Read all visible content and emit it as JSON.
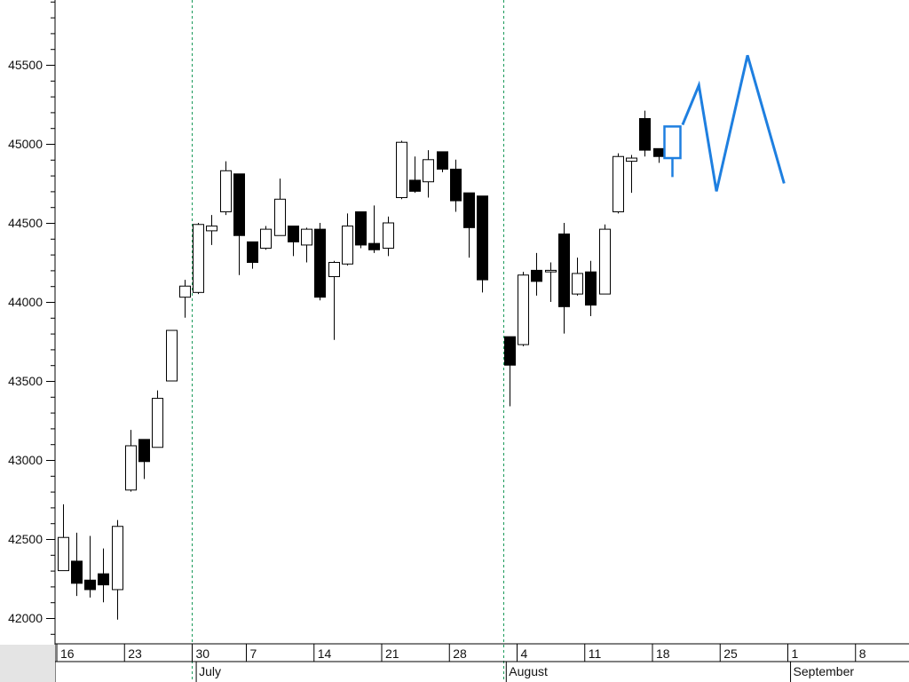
{
  "chart_data": {
    "type": "candlestick",
    "y_ticks": [
      42000,
      42500,
      43000,
      43500,
      44000,
      44500,
      45000,
      45500
    ],
    "y_range": [
      41900,
      45950
    ],
    "x_day_labels": [
      "16",
      "23",
      "30",
      "7",
      "14",
      "21",
      "28",
      "4",
      "11",
      "18",
      "25",
      "1",
      "8"
    ],
    "x_month_labels": [
      "July",
      "August",
      "September"
    ],
    "month_divider_after_slot": [
      10,
      33
    ],
    "candles": [
      {
        "slot": 0,
        "o": 42300,
        "h": 42720,
        "l": 42300,
        "c": 42510
      },
      {
        "slot": 1,
        "o": 42360,
        "h": 42540,
        "l": 42140,
        "c": 42220
      },
      {
        "slot": 2,
        "o": 42240,
        "h": 42520,
        "l": 42130,
        "c": 42180
      },
      {
        "slot": 3,
        "o": 42280,
        "h": 42440,
        "l": 42100,
        "c": 42210
      },
      {
        "slot": 4,
        "o": 42180,
        "h": 42620,
        "l": 41990,
        "c": 42580
      },
      {
        "slot": 5,
        "o": 42810,
        "h": 43190,
        "l": 42800,
        "c": 43090
      },
      {
        "slot": 6,
        "o": 43130,
        "h": 43130,
        "l": 42880,
        "c": 42990
      },
      {
        "slot": 7,
        "o": 43080,
        "h": 43440,
        "l": 43080,
        "c": 43390
      },
      {
        "slot": 8,
        "o": 43500,
        "h": 43820,
        "l": 43500,
        "c": 43820
      },
      {
        "slot": 9,
        "o": 44030,
        "h": 44140,
        "l": 43900,
        "c": 44100
      },
      {
        "slot": 10,
        "o": 44060,
        "h": 44500,
        "l": 44050,
        "c": 44490
      },
      {
        "slot": 11,
        "o": 44450,
        "h": 44550,
        "l": 44360,
        "c": 44480
      },
      {
        "slot": 12,
        "o": 44570,
        "h": 44890,
        "l": 44550,
        "c": 44830
      },
      {
        "slot": 13,
        "o": 44810,
        "h": 44810,
        "l": 44170,
        "c": 44420
      },
      {
        "slot": 14,
        "o": 44380,
        "h": 44380,
        "l": 44210,
        "c": 44250
      },
      {
        "slot": 15,
        "o": 44340,
        "h": 44480,
        "l": 44330,
        "c": 44460
      },
      {
        "slot": 16,
        "o": 44420,
        "h": 44780,
        "l": 44420,
        "c": 44650
      },
      {
        "slot": 17,
        "o": 44480,
        "h": 44480,
        "l": 44290,
        "c": 44380
      },
      {
        "slot": 18,
        "o": 44360,
        "h": 44470,
        "l": 44250,
        "c": 44460
      },
      {
        "slot": 19,
        "o": 44460,
        "h": 44500,
        "l": 44010,
        "c": 44030
      },
      {
        "slot": 20,
        "o": 44160,
        "h": 44260,
        "l": 43760,
        "c": 44250
      },
      {
        "slot": 21,
        "o": 44240,
        "h": 44560,
        "l": 44230,
        "c": 44480
      },
      {
        "slot": 22,
        "o": 44570,
        "h": 44570,
        "l": 44340,
        "c": 44360
      },
      {
        "slot": 23,
        "o": 44370,
        "h": 44610,
        "l": 44310,
        "c": 44330
      },
      {
        "slot": 24,
        "o": 44340,
        "h": 44540,
        "l": 44290,
        "c": 44500
      },
      {
        "slot": 25,
        "o": 44660,
        "h": 45020,
        "l": 44650,
        "c": 45010
      },
      {
        "slot": 26,
        "o": 44770,
        "h": 44920,
        "l": 44690,
        "c": 44700
      },
      {
        "slot": 27,
        "o": 44760,
        "h": 44960,
        "l": 44660,
        "c": 44900
      },
      {
        "slot": 28,
        "o": 44950,
        "h": 44950,
        "l": 44820,
        "c": 44840
      },
      {
        "slot": 29,
        "o": 44840,
        "h": 44900,
        "l": 44570,
        "c": 44640
      },
      {
        "slot": 30,
        "o": 44690,
        "h": 44690,
        "l": 44280,
        "c": 44470
      },
      {
        "slot": 31,
        "o": 44670,
        "h": 44670,
        "l": 44060,
        "c": 44140
      },
      {
        "slot": 33,
        "o": 43780,
        "h": 43780,
        "l": 43340,
        "c": 43600
      },
      {
        "slot": 34,
        "o": 43730,
        "h": 44190,
        "l": 43720,
        "c": 44170
      },
      {
        "slot": 35,
        "o": 44200,
        "h": 44310,
        "l": 44040,
        "c": 44130
      },
      {
        "slot": 36,
        "o": 44190,
        "h": 44250,
        "l": 44000,
        "c": 44200
      },
      {
        "slot": 37,
        "o": 44430,
        "h": 44500,
        "l": 43800,
        "c": 43970
      },
      {
        "slot": 38,
        "o": 44050,
        "h": 44280,
        "l": 44040,
        "c": 44180
      },
      {
        "slot": 39,
        "o": 44190,
        "h": 44260,
        "l": 43910,
        "c": 43980
      },
      {
        "slot": 40,
        "o": 44050,
        "h": 44490,
        "l": 44050,
        "c": 44460
      },
      {
        "slot": 41,
        "o": 44570,
        "h": 44940,
        "l": 44560,
        "c": 44920
      },
      {
        "slot": 42,
        "o": 44890,
        "h": 44930,
        "l": 44690,
        "c": 44910
      },
      {
        "slot": 43,
        "o": 45160,
        "h": 45210,
        "l": 44920,
        "c": 44960
      },
      {
        "slot": 44,
        "o": 44970,
        "h": 44970,
        "l": 44880,
        "c": 44920
      }
    ],
    "projection": {
      "color": "#1e7fe0",
      "candle": {
        "slot": 45,
        "top": 45110,
        "bottom": 44910,
        "tail_low": 44790
      },
      "zigzag": [
        {
          "slot": 45.8,
          "v": 45120
        },
        {
          "slot": 47.0,
          "v": 45370
        },
        {
          "slot": 48.3,
          "v": 44700
        },
        {
          "slot": 50.6,
          "v": 45560
        },
        {
          "slot": 53.3,
          "v": 44750
        }
      ]
    },
    "colors": {
      "gridline": "#1a9a5a",
      "axis": "#000000",
      "bear_fill": "#000000",
      "bull_fill": "#ffffff"
    }
  }
}
